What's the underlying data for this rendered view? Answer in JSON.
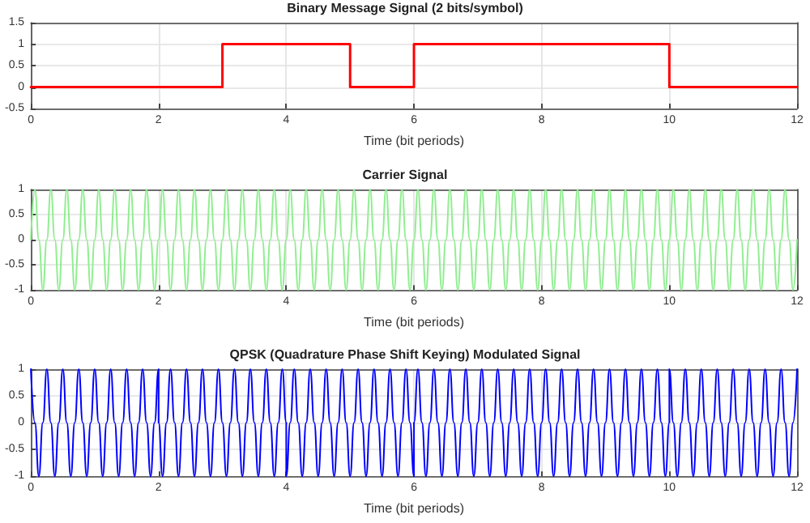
{
  "chart_data": [
    {
      "type": "step",
      "title": "Binary Message Signal (2 bits/symbol)",
      "xlabel": "Time (bit periods)",
      "x": [
        0,
        3,
        5,
        6,
        10,
        12
      ],
      "series": [
        {
          "color": "#ff0000",
          "values": [
            0,
            1,
            0,
            1,
            0,
            0
          ]
        }
      ],
      "xlim": [
        0,
        12
      ],
      "xticks": [
        0,
        2,
        4,
        6,
        8,
        10,
        12
      ],
      "ylim": [
        -0.5,
        1.5
      ],
      "yticks": [
        -0.5,
        0,
        0.5,
        1,
        1.5
      ],
      "grid": true,
      "marker": "none",
      "line_style": "solid"
    },
    {
      "type": "line",
      "title": "Carrier Signal",
      "xlabel": "Time (bit periods)",
      "x": [
        0,
        0.0625,
        0.125,
        0.1875,
        0.25,
        0.3125,
        0.375,
        0.4375,
        0.5,
        0.5625,
        0.625,
        0.6875,
        0.75,
        0.8125,
        0.875,
        0.9375,
        1,
        1.0625,
        1.125,
        1.1875,
        1.25,
        1.3125,
        1.375,
        1.4375,
        1.5,
        1.5625,
        1.625,
        1.6875,
        1.75,
        1.8125,
        1.875,
        1.9375,
        2,
        2.0625,
        2.125,
        2.1875,
        2.25,
        2.3125,
        2.375,
        2.4375,
        2.5,
        2.5625,
        2.625,
        2.6875,
        2.75,
        2.8125,
        2.875,
        2.9375,
        3,
        3.0625,
        3.125,
        3.1875,
        3.25,
        3.3125,
        3.375,
        3.4375,
        3.5,
        3.5625,
        3.625,
        3.6875,
        3.75,
        3.8125,
        3.875,
        3.9375,
        4,
        4.0625,
        4.125,
        4.1875,
        4.25,
        4.3125,
        4.375,
        4.4375,
        4.5,
        4.5625,
        4.625,
        4.6875,
        4.75,
        4.8125,
        4.875,
        4.9375,
        5,
        5.0625,
        5.125,
        5.1875,
        5.25,
        5.3125,
        5.375,
        5.4375,
        5.5,
        5.5625,
        5.625,
        5.6875,
        5.75,
        5.8125,
        5.875,
        5.9375,
        6,
        6.0625,
        6.125,
        6.1875,
        6.25,
        6.3125,
        6.375,
        6.4375,
        6.5,
        6.5625,
        6.625,
        6.6875,
        6.75,
        6.8125,
        6.875,
        6.9375,
        7,
        7.0625,
        7.125,
        7.1875,
        7.25,
        7.3125,
        7.375,
        7.4375,
        7.5,
        7.5625,
        7.625,
        7.6875,
        7.75,
        7.8125,
        7.875,
        7.9375,
        8,
        8.0625,
        8.125,
        8.1875,
        8.25,
        8.3125,
        8.375,
        8.4375,
        8.5,
        8.5625,
        8.625,
        8.6875,
        8.75,
        8.8125,
        8.875,
        8.9375,
        9,
        9.0625,
        9.125,
        9.1875,
        9.25,
        9.3125,
        9.375,
        9.4375,
        9.5,
        9.5625,
        9.625,
        9.6875,
        9.75,
        9.8125,
        9.875,
        9.9375,
        10,
        10.0625,
        10.125,
        10.1875,
        10.25,
        10.3125,
        10.375,
        10.4375,
        10.5,
        10.5625,
        10.625,
        10.6875,
        10.75,
        10.8125,
        10.875,
        10.9375,
        11,
        11.0625,
        11.125,
        11.1875,
        11.25,
        11.3125,
        11.375,
        11.4375,
        11.5,
        11.5625,
        11.625,
        11.6875,
        11.75,
        11.8125,
        11.875,
        11.9375,
        12
      ],
      "series": [
        {
          "color": "#90ee90",
          "values": [
            0,
            1,
            0,
            -1,
            0,
            1,
            0,
            -1,
            0,
            1,
            0,
            -1,
            0,
            1,
            0,
            -1,
            0,
            1,
            0,
            -1,
            0,
            1,
            0,
            -1,
            0,
            1,
            0,
            -1,
            0,
            1,
            0,
            -1,
            0,
            1,
            0,
            -1,
            0,
            1,
            0,
            -1,
            0,
            1,
            0,
            -1,
            0,
            1,
            0,
            -1,
            0,
            1,
            0,
            -1,
            0,
            1,
            0,
            -1,
            0,
            1,
            0,
            -1,
            0,
            1,
            0,
            -1,
            0,
            1,
            0,
            -1,
            0,
            1,
            0,
            -1,
            0,
            1,
            0,
            -1,
            0,
            1,
            0,
            -1,
            0,
            1,
            0,
            -1,
            0,
            1,
            0,
            -1,
            0,
            1,
            0,
            -1,
            0,
            1,
            0,
            -1,
            0,
            1,
            0,
            -1,
            0,
            1,
            0,
            -1,
            0,
            1,
            0,
            -1,
            0,
            1,
            0,
            -1,
            0,
            1,
            0,
            -1,
            0,
            1,
            0,
            -1,
            0,
            1,
            0,
            -1,
            0,
            1,
            0,
            -1,
            0,
            1,
            0,
            -1,
            0,
            1,
            0,
            -1,
            0,
            1,
            0,
            -1,
            0,
            1,
            0,
            -1,
            0,
            1,
            0,
            -1,
            0,
            1,
            0,
            -1,
            0,
            1,
            0,
            -1,
            0,
            1,
            0,
            -1,
            0,
            1,
            0,
            -1,
            0,
            1,
            0,
            -1,
            0,
            1,
            0,
            -1,
            0,
            1,
            0,
            -1,
            0,
            1,
            0,
            -1,
            0,
            1,
            0,
            -1,
            0,
            1,
            0,
            -1,
            0,
            1,
            0,
            -1,
            0
          ]
        }
      ],
      "xlim": [
        0,
        12
      ],
      "xticks": [
        0,
        2,
        4,
        6,
        8,
        10,
        12
      ],
      "ylim": [
        -1,
        1
      ],
      "yticks": [
        -1,
        -0.5,
        0,
        0.5,
        1
      ],
      "grid": true,
      "marker": "none",
      "line_style": "solid"
    },
    {
      "type": "line",
      "title": "QPSK (Quadrature Phase Shift Keying) Modulated Signal",
      "xlabel": "Time (bit periods)",
      "x": [
        0,
        0.0625,
        0.125,
        0.1875,
        0.25,
        0.3125,
        0.375,
        0.4375,
        0.5,
        0.5625,
        0.625,
        0.6875,
        0.75,
        0.8125,
        0.875,
        0.9375,
        1,
        1.0625,
        1.125,
        1.1875,
        1.25,
        1.3125,
        1.375,
        1.4375,
        1.5,
        1.5625,
        1.625,
        1.6875,
        1.75,
        1.8125,
        1.875,
        1.9375,
        2,
        2,
        2.0625,
        2.125,
        2.1875,
        2.25,
        2.3125,
        2.375,
        2.4375,
        2.5,
        2.5625,
        2.625,
        2.6875,
        2.75,
        2.8125,
        2.875,
        2.9375,
        3,
        3.0625,
        3.125,
        3.1875,
        3.25,
        3.3125,
        3.375,
        3.4375,
        3.5,
        3.5625,
        3.625,
        3.6875,
        3.75,
        3.8125,
        3.875,
        3.9375,
        4,
        4,
        4.0625,
        4.125,
        4.1875,
        4.25,
        4.3125,
        4.375,
        4.4375,
        4.5,
        4.5625,
        4.625,
        4.6875,
        4.75,
        4.8125,
        4.875,
        4.9375,
        5,
        5.0625,
        5.125,
        5.1875,
        5.25,
        5.3125,
        5.375,
        5.4375,
        5.5,
        5.5625,
        5.625,
        5.6875,
        5.75,
        5.8125,
        5.875,
        5.9375,
        6,
        6,
        6.0625,
        6.125,
        6.1875,
        6.25,
        6.3125,
        6.375,
        6.4375,
        6.5,
        6.5625,
        6.625,
        6.6875,
        6.75,
        6.8125,
        6.875,
        6.9375,
        7,
        7.0625,
        7.125,
        7.1875,
        7.25,
        7.3125,
        7.375,
        7.4375,
        7.5,
        7.5625,
        7.625,
        7.6875,
        7.75,
        7.8125,
        7.875,
        7.9375,
        8,
        8.0625,
        8.125,
        8.1875,
        8.25,
        8.3125,
        8.375,
        8.4375,
        8.5,
        8.5625,
        8.625,
        8.6875,
        8.75,
        8.8125,
        8.875,
        8.9375,
        9,
        9.0625,
        9.125,
        9.1875,
        9.25,
        9.3125,
        9.375,
        9.4375,
        9.5,
        9.5625,
        9.625,
        9.6875,
        9.75,
        9.8125,
        9.875,
        9.9375,
        10,
        10,
        10.0625,
        10.125,
        10.1875,
        10.25,
        10.3125,
        10.375,
        10.4375,
        10.5,
        10.5625,
        10.625,
        10.6875,
        10.75,
        10.8125,
        10.875,
        10.9375,
        11,
        11.0625,
        11.125,
        11.1875,
        11.25,
        11.3125,
        11.375,
        11.4375,
        11.5,
        11.5625,
        11.625,
        11.6875,
        11.75,
        11.8125,
        11.875,
        11.9375,
        12
      ],
      "series": [
        {
          "color": "#0000ff",
          "values": [
            1,
            0,
            -1,
            0,
            1,
            0,
            -1,
            0,
            1,
            0,
            -1,
            0,
            1,
            0,
            -1,
            0,
            1,
            0,
            -1,
            0,
            1,
            0,
            -1,
            0,
            1,
            0,
            -1,
            0,
            1,
            0,
            -1,
            0,
            1,
            0,
            -1,
            0,
            1,
            0,
            -1,
            0,
            1,
            0,
            -1,
            0,
            1,
            0,
            -1,
            0,
            1,
            0,
            -1,
            0,
            1,
            0,
            -1,
            0,
            1,
            0,
            -1,
            0,
            1,
            0,
            -1,
            0,
            1,
            0,
            -1,
            0,
            1,
            0,
            -1,
            0,
            1,
            0,
            -1,
            0,
            1,
            0,
            -1,
            0,
            1,
            0,
            -1,
            0,
            1,
            0,
            -1,
            0,
            1,
            0,
            -1,
            0,
            1,
            0,
            -1,
            0,
            1,
            0,
            -1,
            0,
            1,
            0,
            -1,
            0,
            1,
            0,
            -1,
            0,
            1,
            0,
            -1,
            0,
            1,
            0,
            -1,
            0,
            1,
            0,
            -1,
            0,
            1,
            0,
            -1,
            0,
            1,
            0,
            -1,
            0,
            1,
            0,
            -1,
            0,
            1,
            0,
            -1,
            0,
            1,
            0,
            -1,
            0,
            1,
            0,
            -1,
            0,
            1,
            0,
            -1,
            0,
            1,
            0,
            -1,
            0,
            1,
            0,
            -1,
            0,
            1,
            0,
            -1,
            0,
            1,
            0,
            -1,
            0,
            1,
            0,
            -1,
            0,
            1,
            0,
            -1,
            0,
            1,
            0,
            -1,
            0,
            1,
            0,
            -1,
            0,
            1,
            0,
            -1,
            0,
            1,
            0,
            -1,
            0,
            1,
            0,
            -1,
            0,
            1,
            0,
            -1,
            0,
            1
          ]
        }
      ],
      "xlim": [
        0,
        12
      ],
      "xticks": [
        0,
        2,
        4,
        6,
        8,
        10,
        12
      ],
      "ylim": [
        -1,
        1
      ],
      "yticks": [
        -1,
        -0.5,
        0,
        0.5,
        1
      ],
      "grid": true,
      "marker": "none",
      "line_style": "solid"
    }
  ]
}
